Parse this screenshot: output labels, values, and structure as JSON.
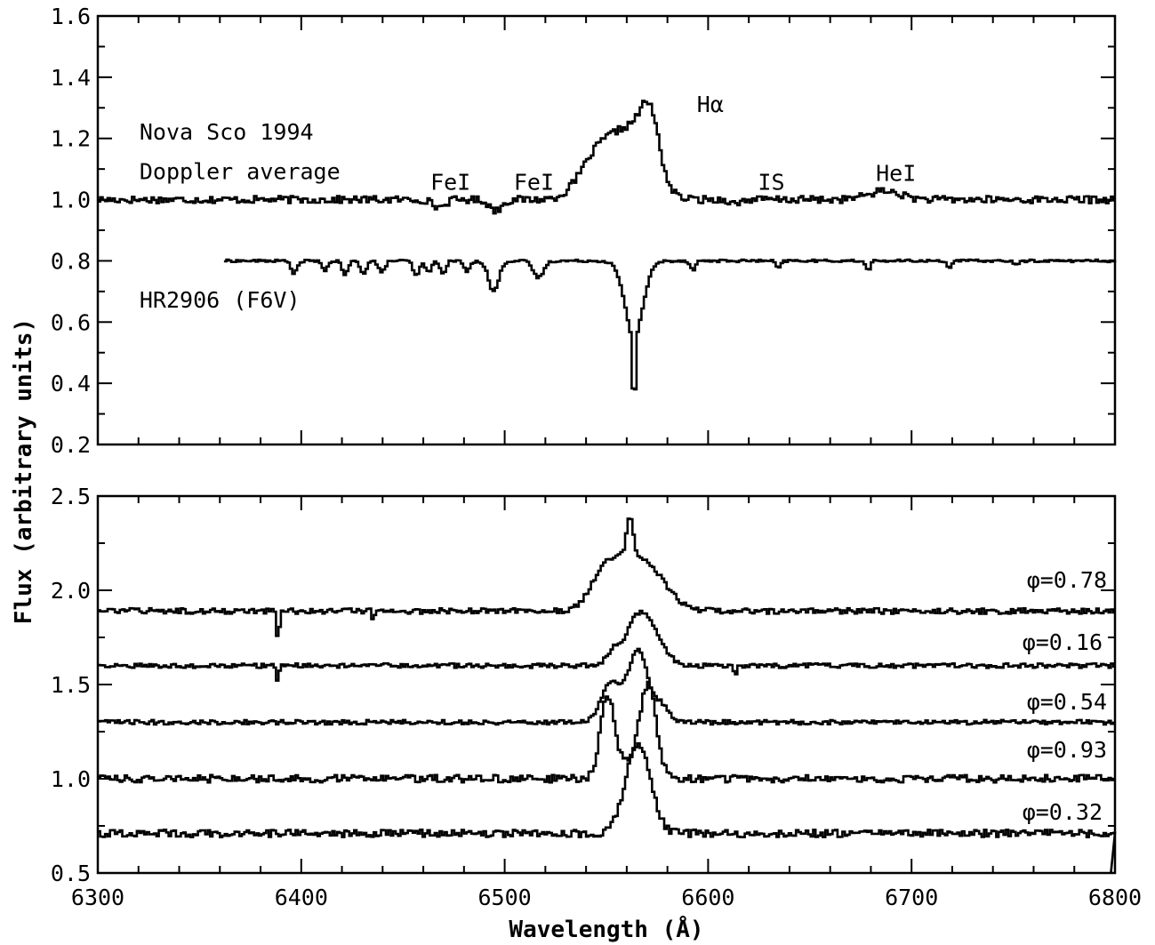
{
  "chart_data": [
    {
      "type": "line",
      "panel": "top",
      "xlabel": "",
      "ylabel": "Flux (arbitrary units)",
      "xlim": [
        6300,
        6800
      ],
      "ylim": [
        0.2,
        1.6
      ],
      "x_ticks": [
        6300,
        6400,
        6500,
        6600,
        6700,
        6800
      ],
      "y_ticks": [
        "0.2",
        "0.4",
        "0.6",
        "0.8",
        "1.0",
        "1.2",
        "1.4",
        "1.6"
      ],
      "annotations": [
        {
          "text": "Nova Sco 1994",
          "x": 6310,
          "y": 1.22
        },
        {
          "text": "Doppler average",
          "x": 6310,
          "y": 1.09
        },
        {
          "text": "HR2906 (F6V)",
          "x": 6310,
          "y": 0.67
        },
        {
          "text": "FeI",
          "x": 6453,
          "y": 1.055
        },
        {
          "text": "FeI",
          "x": 6494,
          "y": 1.055
        },
        {
          "text": "Hα",
          "x": 6584,
          "y": 1.31
        },
        {
          "text": "IS",
          "x": 6614,
          "y": 1.055
        },
        {
          "text": "HeI",
          "x": 6672,
          "y": 1.085
        }
      ],
      "series": [
        {
          "style": "histogram",
          "baseline": 1.0,
          "noise": 0.012,
          "x_range": [
            6300,
            6800
          ],
          "features": [
            {
              "center": 6467,
              "width": 3,
              "depth": -0.025
            },
            {
              "center": 6495,
              "width": 3,
              "depth": -0.035
            },
            {
              "center": 6546,
              "width": 9,
              "depth": 0.15
            },
            {
              "center": 6563,
              "width": 9,
              "depth": 0.2
            },
            {
              "center": 6571,
              "width": 4.5,
              "depth": 0.17
            },
            {
              "center": 6613,
              "width": 2,
              "depth": -0.015
            },
            {
              "center": 6686,
              "width": 8,
              "depth": 0.028
            }
          ],
          "peak": {
            "x": 6571,
            "y": 1.36
          }
        },
        {
          "style": "histogram",
          "baseline": 0.8,
          "noise": 0.004,
          "x_range": [
            6362,
            6800
          ],
          "features": [
            {
              "center": 6396,
              "width": 1.5,
              "depth": -0.04
            },
            {
              "center": 6411,
              "width": 1.5,
              "depth": -0.03
            },
            {
              "center": 6421,
              "width": 1.5,
              "depth": -0.045
            },
            {
              "center": 6430,
              "width": 1.5,
              "depth": -0.04
            },
            {
              "center": 6439,
              "width": 1.5,
              "depth": -0.04
            },
            {
              "center": 6456,
              "width": 1.5,
              "depth": -0.05
            },
            {
              "center": 6462,
              "width": 1.5,
              "depth": -0.035
            },
            {
              "center": 6469,
              "width": 1.5,
              "depth": -0.04
            },
            {
              "center": 6481,
              "width": 1.5,
              "depth": -0.035
            },
            {
              "center": 6494,
              "width": 2.5,
              "depth": -0.1
            },
            {
              "center": 6516,
              "width": 2.5,
              "depth": -0.055
            },
            {
              "center": 6563,
              "width": 4.5,
              "depth": -0.24
            },
            {
              "center": 6563,
              "width": 0.7,
              "depth": -0.26
            },
            {
              "center": 6592,
              "width": 1.2,
              "depth": -0.03
            },
            {
              "center": 6634,
              "width": 1.2,
              "depth": -0.025
            },
            {
              "center": 6678,
              "width": 1.2,
              "depth": -0.03
            },
            {
              "center": 6718,
              "width": 1.2,
              "depth": -0.02
            },
            {
              "center": 6751,
              "width": 1.2,
              "depth": -0.015
            }
          ],
          "minimum": {
            "x": 6563,
            "y": 0.31
          }
        }
      ]
    },
    {
      "type": "line",
      "panel": "bottom",
      "xlabel": "Wavelength (Å)",
      "ylabel": "Flux (arbitrary units)",
      "xlim": [
        6300,
        6800
      ],
      "ylim": [
        0.5,
        2.5
      ],
      "x_ticks": [
        6300,
        6400,
        6500,
        6600,
        6700,
        6800
      ],
      "y_ticks": [
        "0.5",
        "1.0",
        "1.5",
        "2.0",
        "2.5"
      ],
      "series": [
        {
          "name": "φ=0.78",
          "baseline": 1.89,
          "noise": 0.015,
          "features": [
            {
              "center": 6548,
              "width": 7,
              "depth": 0.12
            },
            {
              "center": 6558,
              "width": 10,
              "depth": 0.2
            },
            {
              "center": 6572,
              "width": 9,
              "depth": 0.16
            },
            {
              "center": 6561,
              "width": 1.6,
              "depth": 0.23
            },
            {
              "center": 6388,
              "width": 0.6,
              "depth": -0.17
            },
            {
              "center": 6435,
              "width": 0.6,
              "depth": -0.05
            }
          ],
          "peak": {
            "x": 6561,
            "y": 2.37
          }
        },
        {
          "name": "φ=0.16",
          "baseline": 1.6,
          "noise": 0.012,
          "features": [
            {
              "center": 6567,
              "width": 7.5,
              "depth": 0.29
            },
            {
              "center": 6552,
              "width": 3,
              "depth": 0.05
            },
            {
              "center": 6388,
              "width": 0.5,
              "depth": -0.12
            },
            {
              "center": 6613,
              "width": 0.8,
              "depth": -0.04
            }
          ],
          "peak": {
            "x": 6567,
            "y": 1.9
          }
        },
        {
          "name": "φ=0.54",
          "baseline": 1.3,
          "noise": 0.012,
          "features": [
            {
              "center": 6552,
              "width": 5,
              "depth": 0.21
            },
            {
              "center": 6565,
              "width": 4.5,
              "depth": 0.38
            },
            {
              "center": 6576,
              "width": 4,
              "depth": 0.09
            }
          ],
          "peak": {
            "x": 6565,
            "y": 1.76
          }
        },
        {
          "name": "φ=0.93",
          "baseline": 1.0,
          "noise": 0.02,
          "features": [
            {
              "center": 6550,
              "width": 3.5,
              "depth": 0.44
            },
            {
              "center": 6570,
              "width": 4,
              "depth": 0.48
            },
            {
              "center": 6561,
              "width": 5,
              "depth": 0.08
            }
          ],
          "peak": {
            "x": 6569,
            "y": 1.52
          }
        },
        {
          "name": "φ=0.32",
          "baseline": 0.71,
          "noise": 0.02,
          "features": [
            {
              "center": 6565,
              "width": 6,
              "depth": 0.48
            }
          ],
          "peak": {
            "x": 6565,
            "y": 1.2
          },
          "end_drop": {
            "x": 6798,
            "y": 0.5
          }
        }
      ]
    }
  ]
}
